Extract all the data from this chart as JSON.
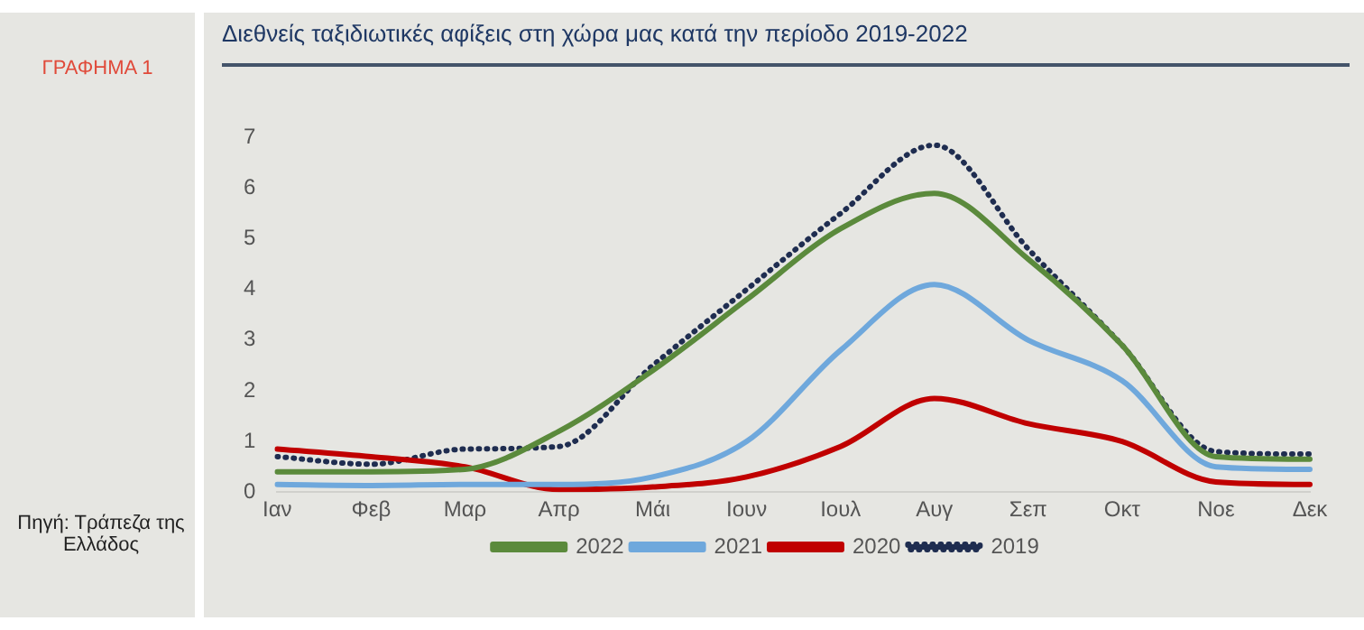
{
  "chart_data": {
    "type": "line",
    "title": "Διεθνείς ταξιδιωτικές αφίξεις στη χώρα μας κατά την περίοδο 2019-2022",
    "annotations": [
      "ΓΡΑΦΗΜΑ 1",
      "Πηγή: Τράπεζα της Ελλάδος"
    ],
    "categories": [
      "Ιαν",
      "Φεβ",
      "Μαρ",
      "Απρ",
      "Μάι",
      "Ιουν",
      "Ιουλ",
      "Αυγ",
      "Σεπ",
      "Οκτ",
      "Νοε",
      "Δεκ"
    ],
    "ylim": [
      0,
      7
    ],
    "yticks": [
      0,
      1,
      2,
      3,
      4,
      5,
      6,
      7
    ],
    "grid": false,
    "legend": "bottom",
    "marker": "none",
    "series": [
      {
        "name": "2022",
        "color": "#5b8a3c",
        "line_style": "solid",
        "values": [
          0.4,
          0.4,
          0.45,
          1.2,
          2.4,
          3.8,
          5.2,
          5.9,
          4.6,
          2.9,
          0.7,
          0.65
        ]
      },
      {
        "name": "2021",
        "color": "#6fa8dc",
        "line_style": "solid",
        "values": [
          0.15,
          0.13,
          0.15,
          0.15,
          0.3,
          1.0,
          2.8,
          4.1,
          3.0,
          2.2,
          0.5,
          0.45
        ]
      },
      {
        "name": "2020",
        "color": "#c00000",
        "line_style": "solid",
        "values": [
          0.85,
          0.7,
          0.5,
          0.05,
          0.1,
          0.3,
          0.9,
          1.85,
          1.35,
          1.0,
          0.2,
          0.15
        ]
      },
      {
        "name": "2019",
        "color": "#1f2d50",
        "line_style": "dotted",
        "values": [
          0.7,
          0.55,
          0.85,
          0.9,
          2.5,
          4.0,
          5.5,
          6.85,
          4.8,
          2.9,
          0.8,
          0.75
        ]
      }
    ]
  }
}
